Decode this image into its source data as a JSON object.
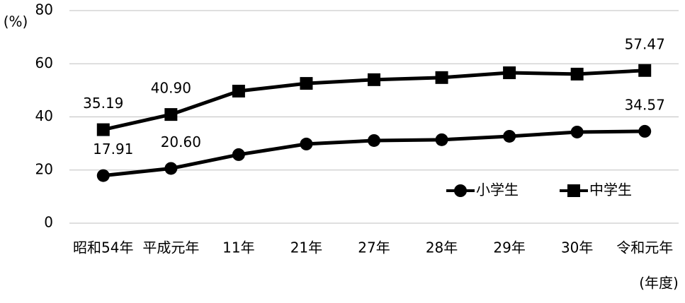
{
  "chart_data": {
    "type": "line",
    "y_label": "(%)",
    "x_label": "(年度)",
    "categories": [
      "昭和54年",
      "平成元年",
      "11年",
      "21年",
      "27年",
      "28年",
      "29年",
      "30年",
      "令和元年"
    ],
    "series": [
      {
        "name": "小学生",
        "color": "#000000",
        "marker": "circle",
        "values": [
          17.91,
          20.6,
          25.8,
          29.8,
          31.1,
          31.4,
          32.7,
          34.3,
          34.57
        ],
        "value_labels": [
          "17.91",
          "20.60",
          null,
          null,
          null,
          null,
          null,
          null,
          "34.57"
        ]
      },
      {
        "name": "中学生",
        "color": "#000000",
        "marker": "square",
        "values": [
          35.19,
          40.9,
          49.7,
          52.6,
          54.0,
          54.8,
          56.6,
          56.1,
          57.47
        ],
        "value_labels": [
          "35.19",
          "40.90",
          null,
          null,
          null,
          null,
          null,
          null,
          "57.47"
        ]
      }
    ],
    "ylim": [
      0,
      80
    ],
    "yticks": [
      0,
      20,
      40,
      60,
      80
    ],
    "grid": true
  }
}
